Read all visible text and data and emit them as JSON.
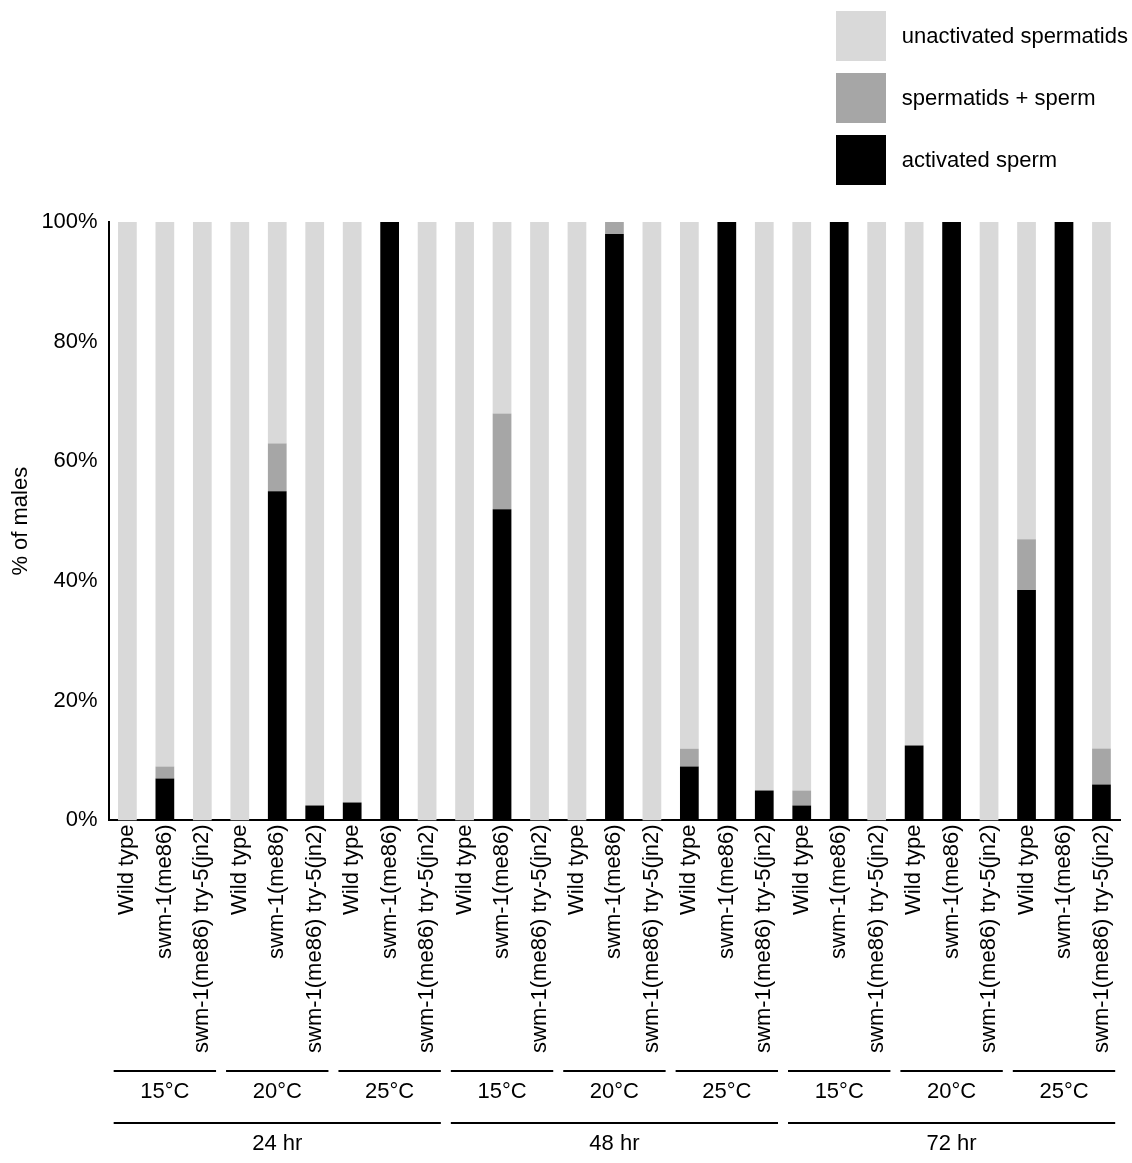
{
  "chart_data": {
    "type": "bar",
    "stacked": true,
    "ylabel": "% of males",
    "ylim": [
      0,
      100
    ],
    "yticks": [
      {
        "value": 0,
        "label": "0%"
      },
      {
        "value": 20,
        "label": "20%"
      },
      {
        "value": 40,
        "label": "40%"
      },
      {
        "value": 60,
        "label": "60%"
      },
      {
        "value": 80,
        "label": "80%"
      },
      {
        "value": 100,
        "label": "100%"
      }
    ],
    "categories": [
      "Wild type",
      "swm-1(me86)",
      "swm-1(me86) try-5(jn2)",
      "Wild type",
      "swm-1(me86)",
      "swm-1(me86) try-5(jn2)",
      "Wild type",
      "swm-1(me86)",
      "swm-1(me86) try-5(jn2)",
      "Wild type",
      "swm-1(me86)",
      "swm-1(me86) try-5(jn2)",
      "Wild type",
      "swm-1(me86)",
      "swm-1(me86) try-5(jn2)",
      "Wild type",
      "swm-1(me86)",
      "swm-1(me86) try-5(jn2)",
      "Wild type",
      "swm-1(me86)",
      "swm-1(me86) try-5(jn2)",
      "Wild type",
      "swm-1(me86)",
      "swm-1(me86) try-5(jn2)",
      "Wild type",
      "swm-1(me86)",
      "swm-1(me86) try-5(jn2)"
    ],
    "series": [
      {
        "name": "activated sperm",
        "color": "#000000",
        "values": [
          0,
          7,
          0,
          0,
          55,
          2.5,
          3,
          100,
          0,
          0,
          52,
          0,
          0,
          98,
          0,
          9,
          100,
          5,
          2.5,
          100,
          0,
          12.5,
          100,
          0,
          38.5,
          100,
          6
        ]
      },
      {
        "name": "spermatids + sperm",
        "color": "#a6a6a6",
        "values": [
          0,
          2,
          0,
          0,
          8,
          0,
          0,
          0,
          0,
          0,
          16,
          0,
          0,
          2,
          0,
          3,
          0,
          0,
          2.5,
          0,
          0,
          0,
          0,
          0,
          8.5,
          0,
          6
        ]
      },
      {
        "name": "unactivated spermatids",
        "color": "#d9d9d9",
        "values": [
          100,
          91,
          100,
          100,
          37,
          97.5,
          97,
          0,
          100,
          100,
          32,
          100,
          100,
          0,
          100,
          88,
          0,
          95,
          95,
          0,
          100,
          87.5,
          0,
          100,
          53,
          0,
          88
        ]
      }
    ],
    "annotations": [
      "15°C",
      "20°C",
      "25°C",
      "15°C",
      "20°C",
      "25°C",
      "15°C",
      "20°C",
      "25°C",
      "24 hr",
      "48 hr",
      "72 hr"
    ],
    "legend": "top right",
    "grid": false
  }
}
